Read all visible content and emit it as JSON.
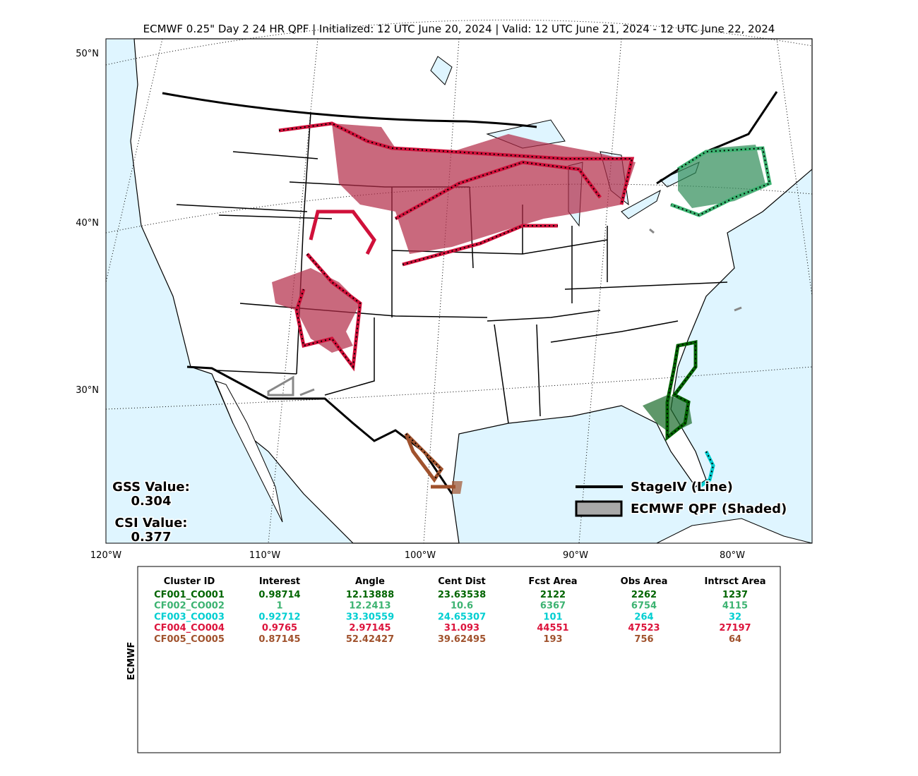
{
  "title": "ECMWF 0.25\" Day 2 24 HR QPF | Initialized: 12 UTC June 20, 2024 | Valid: 12 UTC June 21, 2024 - 12 UTC June 22, 2024",
  "map": {
    "lat_labels": [
      "50°N",
      "40°N",
      "30°N"
    ],
    "lon_labels": [
      "120°W",
      "110°W",
      "100°W",
      "90°W",
      "80°W"
    ],
    "legend": [
      "StageIV (Line)",
      "ECMWF QPF (Shaded)"
    ],
    "scores": [
      {
        "label": "GSS Value:",
        "value": "0.304"
      },
      {
        "label": "CSI Value:",
        "value": "0.377"
      }
    ]
  },
  "table": {
    "side_label": "ECMWF",
    "header": [
      "Cluster ID",
      "Interest",
      "Angle",
      "Cent Dist",
      "Fcst Area",
      "Obs Area",
      "Intrsct Area"
    ],
    "row_colors": [
      "#006400",
      "#3cb371",
      "#00ced1",
      "#dc143c",
      "#a0522d"
    ],
    "rows": [
      [
        "CF001_CO001",
        "0.98714",
        "12.13888",
        "23.63538",
        "2122",
        "2262",
        "1237"
      ],
      [
        "CF002_CO002",
        "1",
        "12.2413",
        "10.6",
        "6367",
        "6754",
        "4115"
      ],
      [
        "CF003_CO003",
        "0.92712",
        "33.30559",
        "24.65307",
        "101",
        "264",
        "32"
      ],
      [
        "CF004_CO004",
        "0.9765",
        "2.97145",
        "31.093",
        "44551",
        "47523",
        "27197"
      ],
      [
        "CF005_CO005",
        "0.87145",
        "52.42427",
        "39.62495",
        "193",
        "756",
        "64"
      ]
    ]
  }
}
